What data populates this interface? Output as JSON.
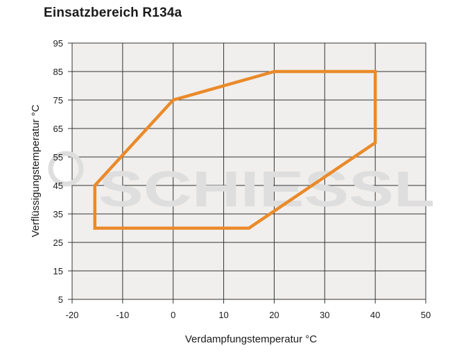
{
  "chart_data": {
    "type": "area",
    "title": "Einsatzbereich R134a",
    "xlabel": "Verdampfungstemperatur °C",
    "ylabel": "Verflüssigungstemperatur °C",
    "xlim": [
      -20,
      50
    ],
    "ylim": [
      5,
      95
    ],
    "xticks": [
      -20,
      -10,
      0,
      10,
      20,
      30,
      40,
      50
    ],
    "yticks": [
      5,
      15,
      25,
      35,
      45,
      55,
      65,
      75,
      85,
      95
    ],
    "grid": true,
    "series": [
      {
        "x": [
          -15.5,
          0,
          20,
          40,
          40,
          15,
          -15.5,
          -15.5
        ],
        "y": [
          45,
          75,
          85,
          85,
          60,
          30,
          30,
          45
        ]
      }
    ],
    "watermark": "SCHIESSL"
  },
  "colors": {
    "plot_background": "#f0efed",
    "grid": "#333333",
    "outline": "#ea8a2a",
    "watermark": "#dedede"
  }
}
